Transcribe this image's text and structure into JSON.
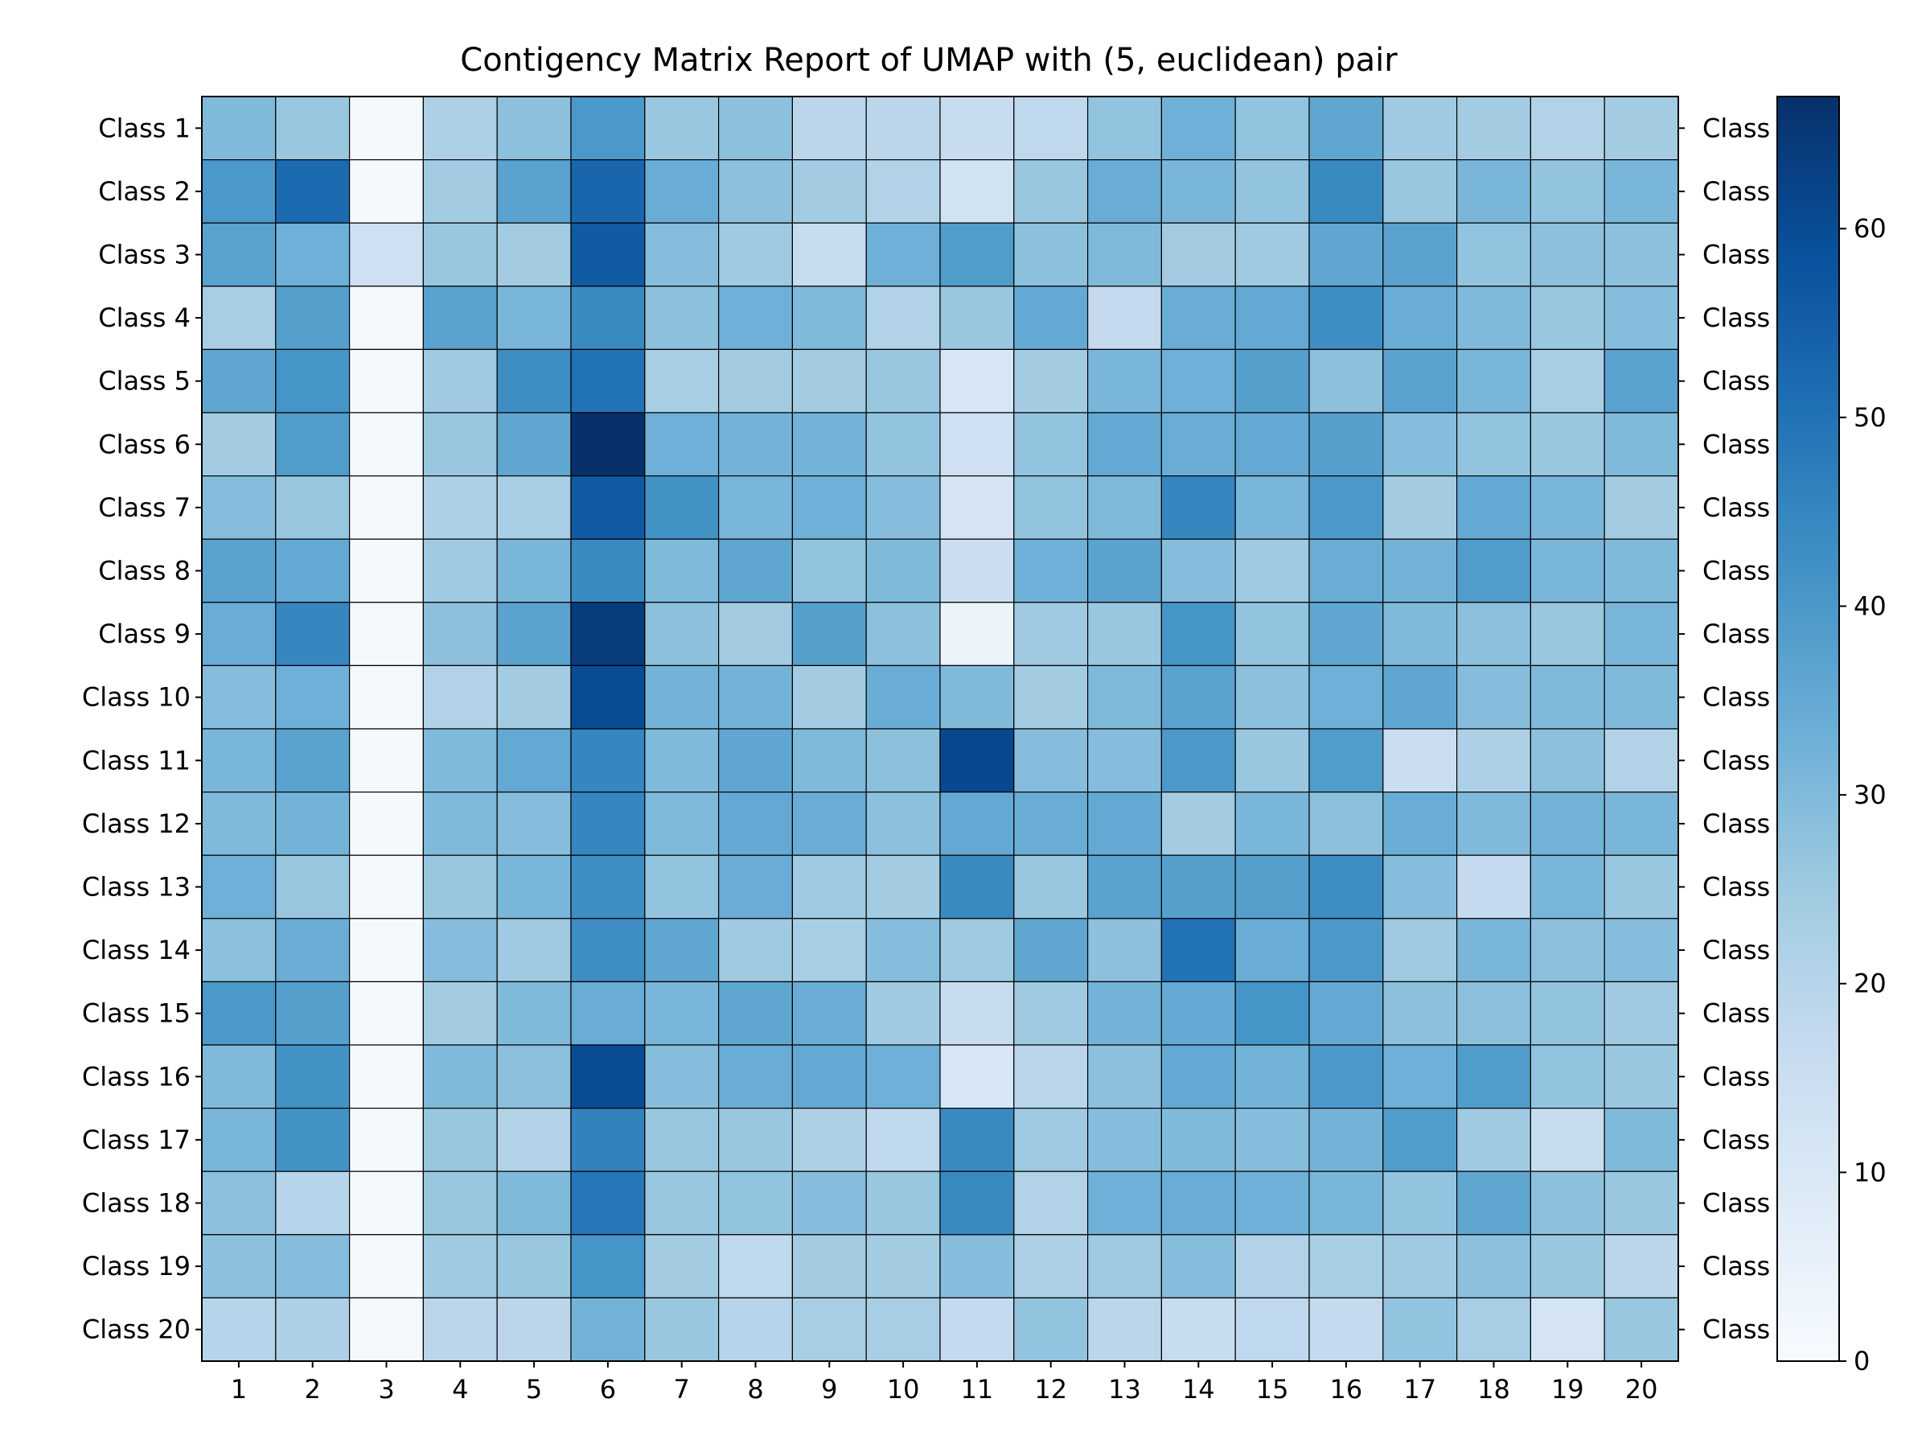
{
  "chart_data": {
    "type": "heatmap",
    "title": "Contigency Matrix Report of UMAP with (5, euclidean) pair",
    "row_labels": [
      "Class 1",
      "Class 2",
      "Class 3",
      "Class 4",
      "Class 5",
      "Class 6",
      "Class 7",
      "Class 8",
      "Class 9",
      "Class 10",
      "Class 11",
      "Class 12",
      "Class 13",
      "Class 14",
      "Class 15",
      "Class 16",
      "Class 17",
      "Class 18",
      "Class 19",
      "Class 20"
    ],
    "col_labels": [
      "1",
      "2",
      "3",
      "4",
      "5",
      "6",
      "7",
      "8",
      "9",
      "10",
      "11",
      "12",
      "13",
      "14",
      "15",
      "16",
      "17",
      "18",
      "19",
      "20"
    ],
    "right_labels": [
      "Class",
      "Class",
      "Class",
      "Class",
      "Class",
      "Class",
      "Class",
      "Class",
      "Class",
      "Class",
      "Class",
      "Class",
      "Class",
      "Class",
      "Class",
      "Class",
      "Class",
      "Class",
      "Class",
      "Class"
    ],
    "colormap": "Blues",
    "color_range": [
      0,
      67
    ],
    "colorbar_ticks": [
      0,
      10,
      20,
      30,
      40,
      50,
      60
    ],
    "values": [
      [
        30,
        26,
        1,
        22,
        28,
        40,
        26,
        28,
        19,
        19,
        16,
        18,
        27,
        33,
        27,
        36,
        25,
        24,
        21,
        24
      ],
      [
        40,
        52,
        1,
        24,
        37,
        53,
        34,
        28,
        24,
        21,
        13,
        26,
        34,
        31,
        27,
        44,
        26,
        31,
        27,
        31
      ],
      [
        37,
        33,
        14,
        26,
        24,
        56,
        29,
        25,
        16,
        33,
        39,
        28,
        30,
        24,
        25,
        36,
        37,
        27,
        28,
        28
      ],
      [
        23,
        38,
        1,
        37,
        31,
        44,
        28,
        33,
        30,
        21,
        26,
        35,
        17,
        34,
        35,
        43,
        34,
        30,
        26,
        29
      ],
      [
        36,
        41,
        1,
        25,
        43,
        50,
        23,
        24,
        24,
        26,
        11,
        24,
        31,
        33,
        38,
        28,
        37,
        31,
        23,
        37
      ],
      [
        24,
        39,
        1,
        26,
        36,
        67,
        33,
        32,
        32,
        27,
        14,
        27,
        35,
        34,
        35,
        38,
        29,
        27,
        26,
        30
      ],
      [
        29,
        26,
        1,
        22,
        23,
        56,
        42,
        31,
        33,
        29,
        12,
        27,
        30,
        45,
        31,
        40,
        24,
        35,
        31,
        24
      ],
      [
        37,
        35,
        1,
        25,
        31,
        44,
        30,
        36,
        27,
        30,
        15,
        33,
        37,
        29,
        25,
        34,
        32,
        39,
        31,
        30
      ],
      [
        34,
        45,
        1,
        28,
        37,
        64,
        28,
        24,
        38,
        28,
        4,
        25,
        26,
        41,
        27,
        36,
        30,
        28,
        26,
        31
      ],
      [
        29,
        33,
        1,
        21,
        24,
        60,
        32,
        32,
        24,
        34,
        30,
        24,
        30,
        37,
        28,
        33,
        36,
        29,
        30,
        30
      ],
      [
        31,
        37,
        1,
        30,
        35,
        45,
        30,
        36,
        30,
        28,
        61,
        29,
        29,
        40,
        26,
        39,
        15,
        22,
        28,
        21
      ],
      [
        30,
        32,
        1,
        30,
        29,
        45,
        30,
        35,
        34,
        28,
        35,
        34,
        35,
        24,
        31,
        28,
        34,
        30,
        32,
        31
      ],
      [
        33,
        26,
        1,
        26,
        31,
        43,
        27,
        34,
        25,
        24,
        44,
        26,
        37,
        38,
        38,
        43,
        29,
        17,
        31,
        26
      ],
      [
        28,
        34,
        1,
        29,
        25,
        43,
        36,
        25,
        23,
        29,
        25,
        36,
        28,
        50,
        34,
        40,
        25,
        31,
        28,
        29
      ],
      [
        40,
        38,
        1,
        24,
        30,
        34,
        31,
        36,
        34,
        25,
        16,
        25,
        32,
        35,
        41,
        35,
        28,
        28,
        27,
        25
      ],
      [
        30,
        42,
        1,
        30,
        28,
        60,
        29,
        34,
        35,
        33,
        11,
        19,
        28,
        35,
        32,
        40,
        33,
        39,
        27,
        26
      ],
      [
        31,
        42,
        1,
        26,
        21,
        46,
        26,
        26,
        22,
        18,
        44,
        25,
        29,
        30,
        29,
        32,
        39,
        25,
        16,
        30
      ],
      [
        28,
        20,
        1,
        26,
        30,
        49,
        26,
        27,
        29,
        26,
        44,
        21,
        33,
        34,
        33,
        31,
        27,
        36,
        28,
        26
      ],
      [
        28,
        29,
        1,
        25,
        26,
        41,
        24,
        18,
        24,
        24,
        29,
        22,
        25,
        29,
        21,
        23,
        25,
        28,
        26,
        19
      ],
      [
        20,
        22,
        1,
        19,
        19,
        32,
        26,
        20,
        23,
        23,
        17,
        27,
        19,
        16,
        18,
        17,
        27,
        23,
        12,
        26
      ]
    ]
  }
}
